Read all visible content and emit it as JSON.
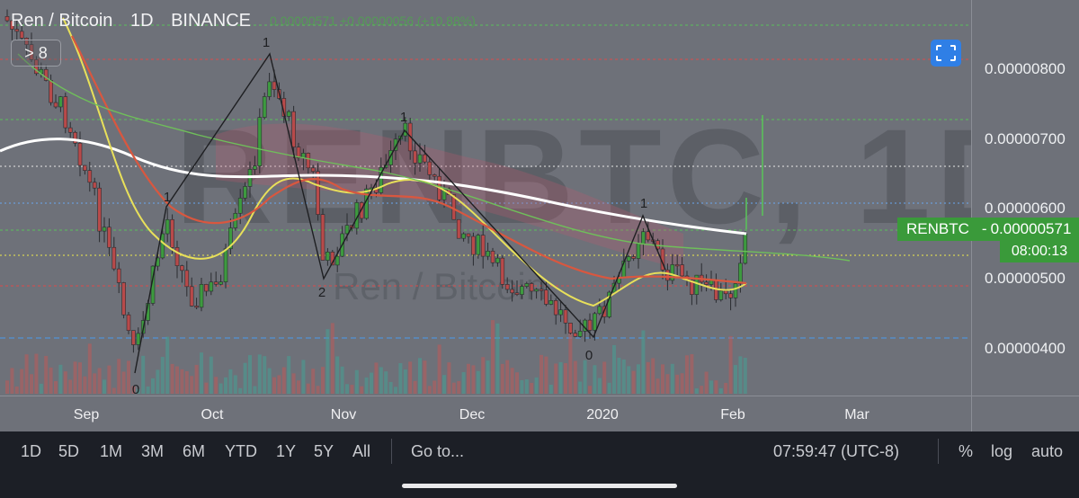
{
  "header": {
    "symbol_name": "Ren / Bitcoin",
    "interval": "1D",
    "exchange": "BINANCE",
    "indicators_toggle": "> 8",
    "ohlc_text": "0.00000571 +0.00000056 (+10.88%)"
  },
  "watermark": {
    "ticker": "RENBTC, 1D",
    "description": "Ren / Bitcoin"
  },
  "buttons": {
    "close_symbol": "✕"
  },
  "price_scale": {
    "labels": [
      "0.00000800",
      "0.00000700",
      "0.00000600",
      "0.00000500",
      "0.00000400"
    ],
    "current_symbol": "RENBTC",
    "current_price": "0.00000571",
    "countdown": "08:00:13"
  },
  "time_scale": {
    "labels": [
      "Sep",
      "Oct",
      "Nov",
      "Dec",
      "2020",
      "Feb",
      "Mar"
    ]
  },
  "wave_labels": [
    "1",
    "1",
    "2",
    "1",
    "1",
    "0",
    "0"
  ],
  "toolbar": {
    "ranges": [
      "1D",
      "5D",
      "1M",
      "3M",
      "6M",
      "YTD",
      "1Y",
      "5Y",
      "All"
    ],
    "goto": "Go to...",
    "clock": "07:59:47 (UTC-8)",
    "percent": "%",
    "log": "log",
    "auto": "auto"
  },
  "colors": {
    "up": "#3d9a3f",
    "down": "#b84a4a",
    "ma_white": "#ffffff",
    "ma_yellow": "#e8e05a",
    "ma_red": "#d9573f",
    "ma_green": "#6fbf5a",
    "accent": "#2f7fe6"
  }
}
